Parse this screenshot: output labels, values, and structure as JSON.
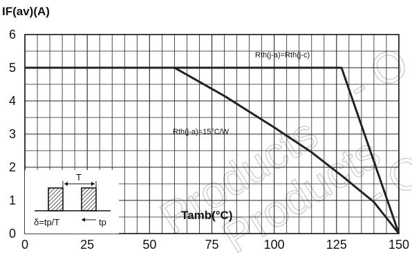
{
  "chart_data": {
    "type": "line",
    "ylabel": "IF(av)(A)",
    "xlabel": "Tamb(°C)",
    "xlim": [
      0,
      150
    ],
    "ylim": [
      0,
      6
    ],
    "x_ticks": [
      "0",
      "25",
      "50",
      "75",
      "100",
      "125",
      "150"
    ],
    "y_ticks": [
      "0",
      "1",
      "2",
      "3",
      "4",
      "5",
      "6"
    ],
    "grid": true,
    "series": [
      {
        "name": "Rth(j-a)=Rth(j-c)",
        "x": [
          0,
          127,
          150
        ],
        "y": [
          5,
          5,
          0
        ]
      },
      {
        "name": "Rth(j-a)=15°C/W",
        "x": [
          0,
          60,
          80,
          100,
          115,
          127,
          140,
          150
        ],
        "y": [
          5,
          5,
          4.15,
          3.2,
          2.45,
          1.75,
          0.95,
          0
        ]
      }
    ],
    "inset": {
      "period_label": "T",
      "duty_label": "δ=tp/T",
      "pulse_label": "tp"
    }
  },
  "watermark": [
    "Products",
    "Products",
    "- O",
    "- O"
  ]
}
